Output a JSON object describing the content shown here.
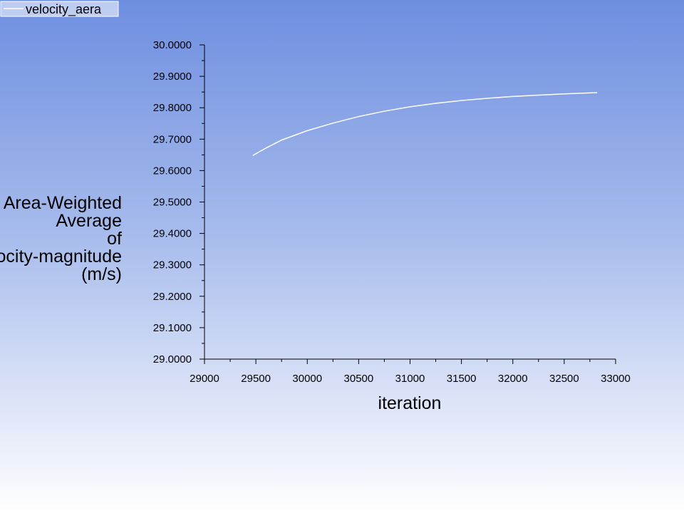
{
  "chart_data": {
    "type": "line",
    "title": "",
    "xlabel": "iteration",
    "ylabel_lines": [
      "Area-Weighted",
      "Average",
      "of",
      "Velocity-magnitude",
      "(m/s)"
    ],
    "xlim": [
      29000,
      33000
    ],
    "ylim": [
      29.0,
      30.0
    ],
    "x_ticks": [
      "29000",
      "29500",
      "30000",
      "30500",
      "31000",
      "31500",
      "32000",
      "32500",
      "33000"
    ],
    "x_tick_values": [
      29000,
      29500,
      30000,
      30500,
      31000,
      31500,
      32000,
      32500,
      33000
    ],
    "y_ticks": [
      "29.0000",
      "29.1000",
      "29.2000",
      "29.3000",
      "29.4000",
      "29.5000",
      "29.6000",
      "29.7000",
      "29.8000",
      "29.9000",
      "30.0000"
    ],
    "y_tick_values": [
      29.0,
      29.1,
      29.2,
      29.3,
      29.4,
      29.5,
      29.6,
      29.7,
      29.8,
      29.9,
      30.0
    ],
    "grid": false,
    "legend_position": "top-left",
    "series": [
      {
        "name": "velocity_aera",
        "color": "#ffffff",
        "x": [
          29470,
          29600,
          29750,
          30000,
          30250,
          30500,
          30750,
          31000,
          31250,
          31500,
          31750,
          32000,
          32250,
          32500,
          32820
        ],
        "y": [
          29.648,
          29.672,
          29.697,
          29.727,
          29.751,
          29.772,
          29.789,
          29.803,
          29.814,
          29.823,
          29.83,
          29.836,
          29.84,
          29.844,
          29.848
        ]
      }
    ]
  }
}
